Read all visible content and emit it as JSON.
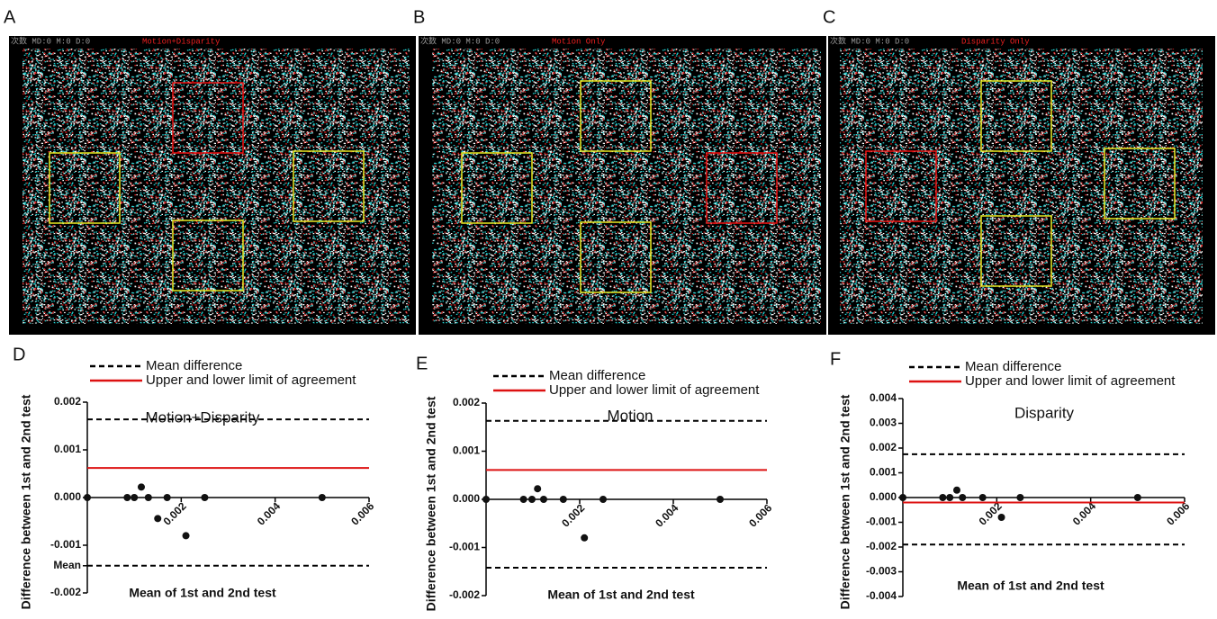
{
  "panels": [
    {
      "label": "A",
      "header": "次数 MD:0 M:0 D:0",
      "title": "Motion+Disparity"
    },
    {
      "label": "B",
      "header": "次数 MD:0 M:0 D:0",
      "title": "Motion Only"
    },
    {
      "label": "C",
      "header": "次数 MD:0 M:0 D:0",
      "title": "Disparity Only"
    }
  ],
  "chart_data": [
    {
      "type": "scatter",
      "label": "D",
      "title": "Motion+Disparity",
      "x_label": "Mean of 1st and 2nd test",
      "y_label": "Difference between 1st and 2nd test",
      "legend": [
        {
          "name": "Mean difference",
          "color": "#000000",
          "dashed": true
        },
        {
          "name": "Upper and lower limit of agreement",
          "color": "#dd1111",
          "dashed": false
        }
      ],
      "x": [
        0,
        0.00085,
        0.001,
        0.00115,
        0.0013,
        0.0015,
        0.0017,
        0.0021,
        0.0025,
        0.005
      ],
      "values": [
        0,
        0,
        0,
        0.00022,
        0,
        -0.00044,
        0,
        -0.0008,
        0,
        0
      ],
      "color": "#111111",
      "reference_lines": [
        {
          "value": 0.00164,
          "color": "#000000",
          "dashed": true
        },
        {
          "value": 0.00062,
          "color": "#dd1111",
          "dashed": false
        },
        {
          "value": -0.00143,
          "color": "#000000",
          "dashed": true
        }
      ],
      "xlim": [
        0,
        0.006
      ],
      "ylim": [
        -0.002,
        0.002
      ],
      "xticks": [
        0.002,
        0.004,
        0.006
      ],
      "yticks": [
        -0.002,
        {
          "value": -0.00143,
          "label": "Mean"
        },
        -0.001,
        {
          "value": 0,
          "label": "0.000"
        },
        0.001,
        0.002
      ]
    },
    {
      "type": "scatter",
      "label": "E",
      "title": "Motion",
      "x_label": "Mean of 1st and 2nd test",
      "y_label": "Difference between 1st and 2nd test",
      "legend": [
        {
          "name": "Mean difference",
          "color": "#000000",
          "dashed": true
        },
        {
          "name": "Upper and lower limit of agreement",
          "color": "#dd1111",
          "dashed": false
        }
      ],
      "x": [
        0,
        0.0008,
        0.00098,
        0.0011,
        0.00123,
        0.00165,
        0.0021,
        0.0025,
        0.005
      ],
      "values": [
        0,
        0,
        0,
        0.00022,
        0,
        0,
        -0.0008,
        0,
        0
      ],
      "color": "#111111",
      "reference_lines": [
        {
          "value": 0.00163,
          "color": "#000000",
          "dashed": true
        },
        {
          "value": 0.00061,
          "color": "#dd1111",
          "dashed": false
        },
        {
          "value": -0.00142,
          "color": "#000000",
          "dashed": true
        }
      ],
      "xlim": [
        0,
        0.006
      ],
      "ylim": [
        -0.002,
        0.002
      ],
      "xticks": [
        0.002,
        0.004,
        0.006
      ],
      "yticks": [
        -0.002,
        -0.001,
        {
          "value": 0,
          "label": "0.000"
        },
        0.001,
        0.002
      ]
    },
    {
      "type": "scatter",
      "label": "F",
      "title": "Disparity",
      "x_label": "Mean of 1st and 2nd test",
      "y_label": "Difference between 1st and 2nd test",
      "legend": [
        {
          "name": "Mean difference",
          "color": "#000000",
          "dashed": true
        },
        {
          "name": "Upper and lower limit of agreement",
          "color": "#dd1111",
          "dashed": false
        }
      ],
      "x": [
        0,
        0.00085,
        0.001,
        0.00115,
        0.00127,
        0.0017,
        0.0021,
        0.0025,
        0.005
      ],
      "values": [
        0,
        0,
        0,
        0.0003,
        0,
        0,
        -0.0008,
        0,
        0
      ],
      "color": "#111111",
      "reference_lines": [
        {
          "value": 0.00175,
          "color": "#000000",
          "dashed": true
        },
        {
          "value": -0.0002,
          "color": "#dd1111",
          "dashed": false
        },
        {
          "value": -0.0019,
          "color": "#000000",
          "dashed": true
        }
      ],
      "xlim": [
        0,
        0.006
      ],
      "ylim": [
        -0.004,
        0.004
      ],
      "xticks": [
        0.002,
        0.004,
        0.006
      ],
      "yticks": [
        -0.004,
        -0.003,
        -0.002,
        -0.001,
        {
          "value": 0,
          "label": "0.000"
        },
        0.001,
        0.002,
        0.003,
        0.004
      ]
    }
  ]
}
